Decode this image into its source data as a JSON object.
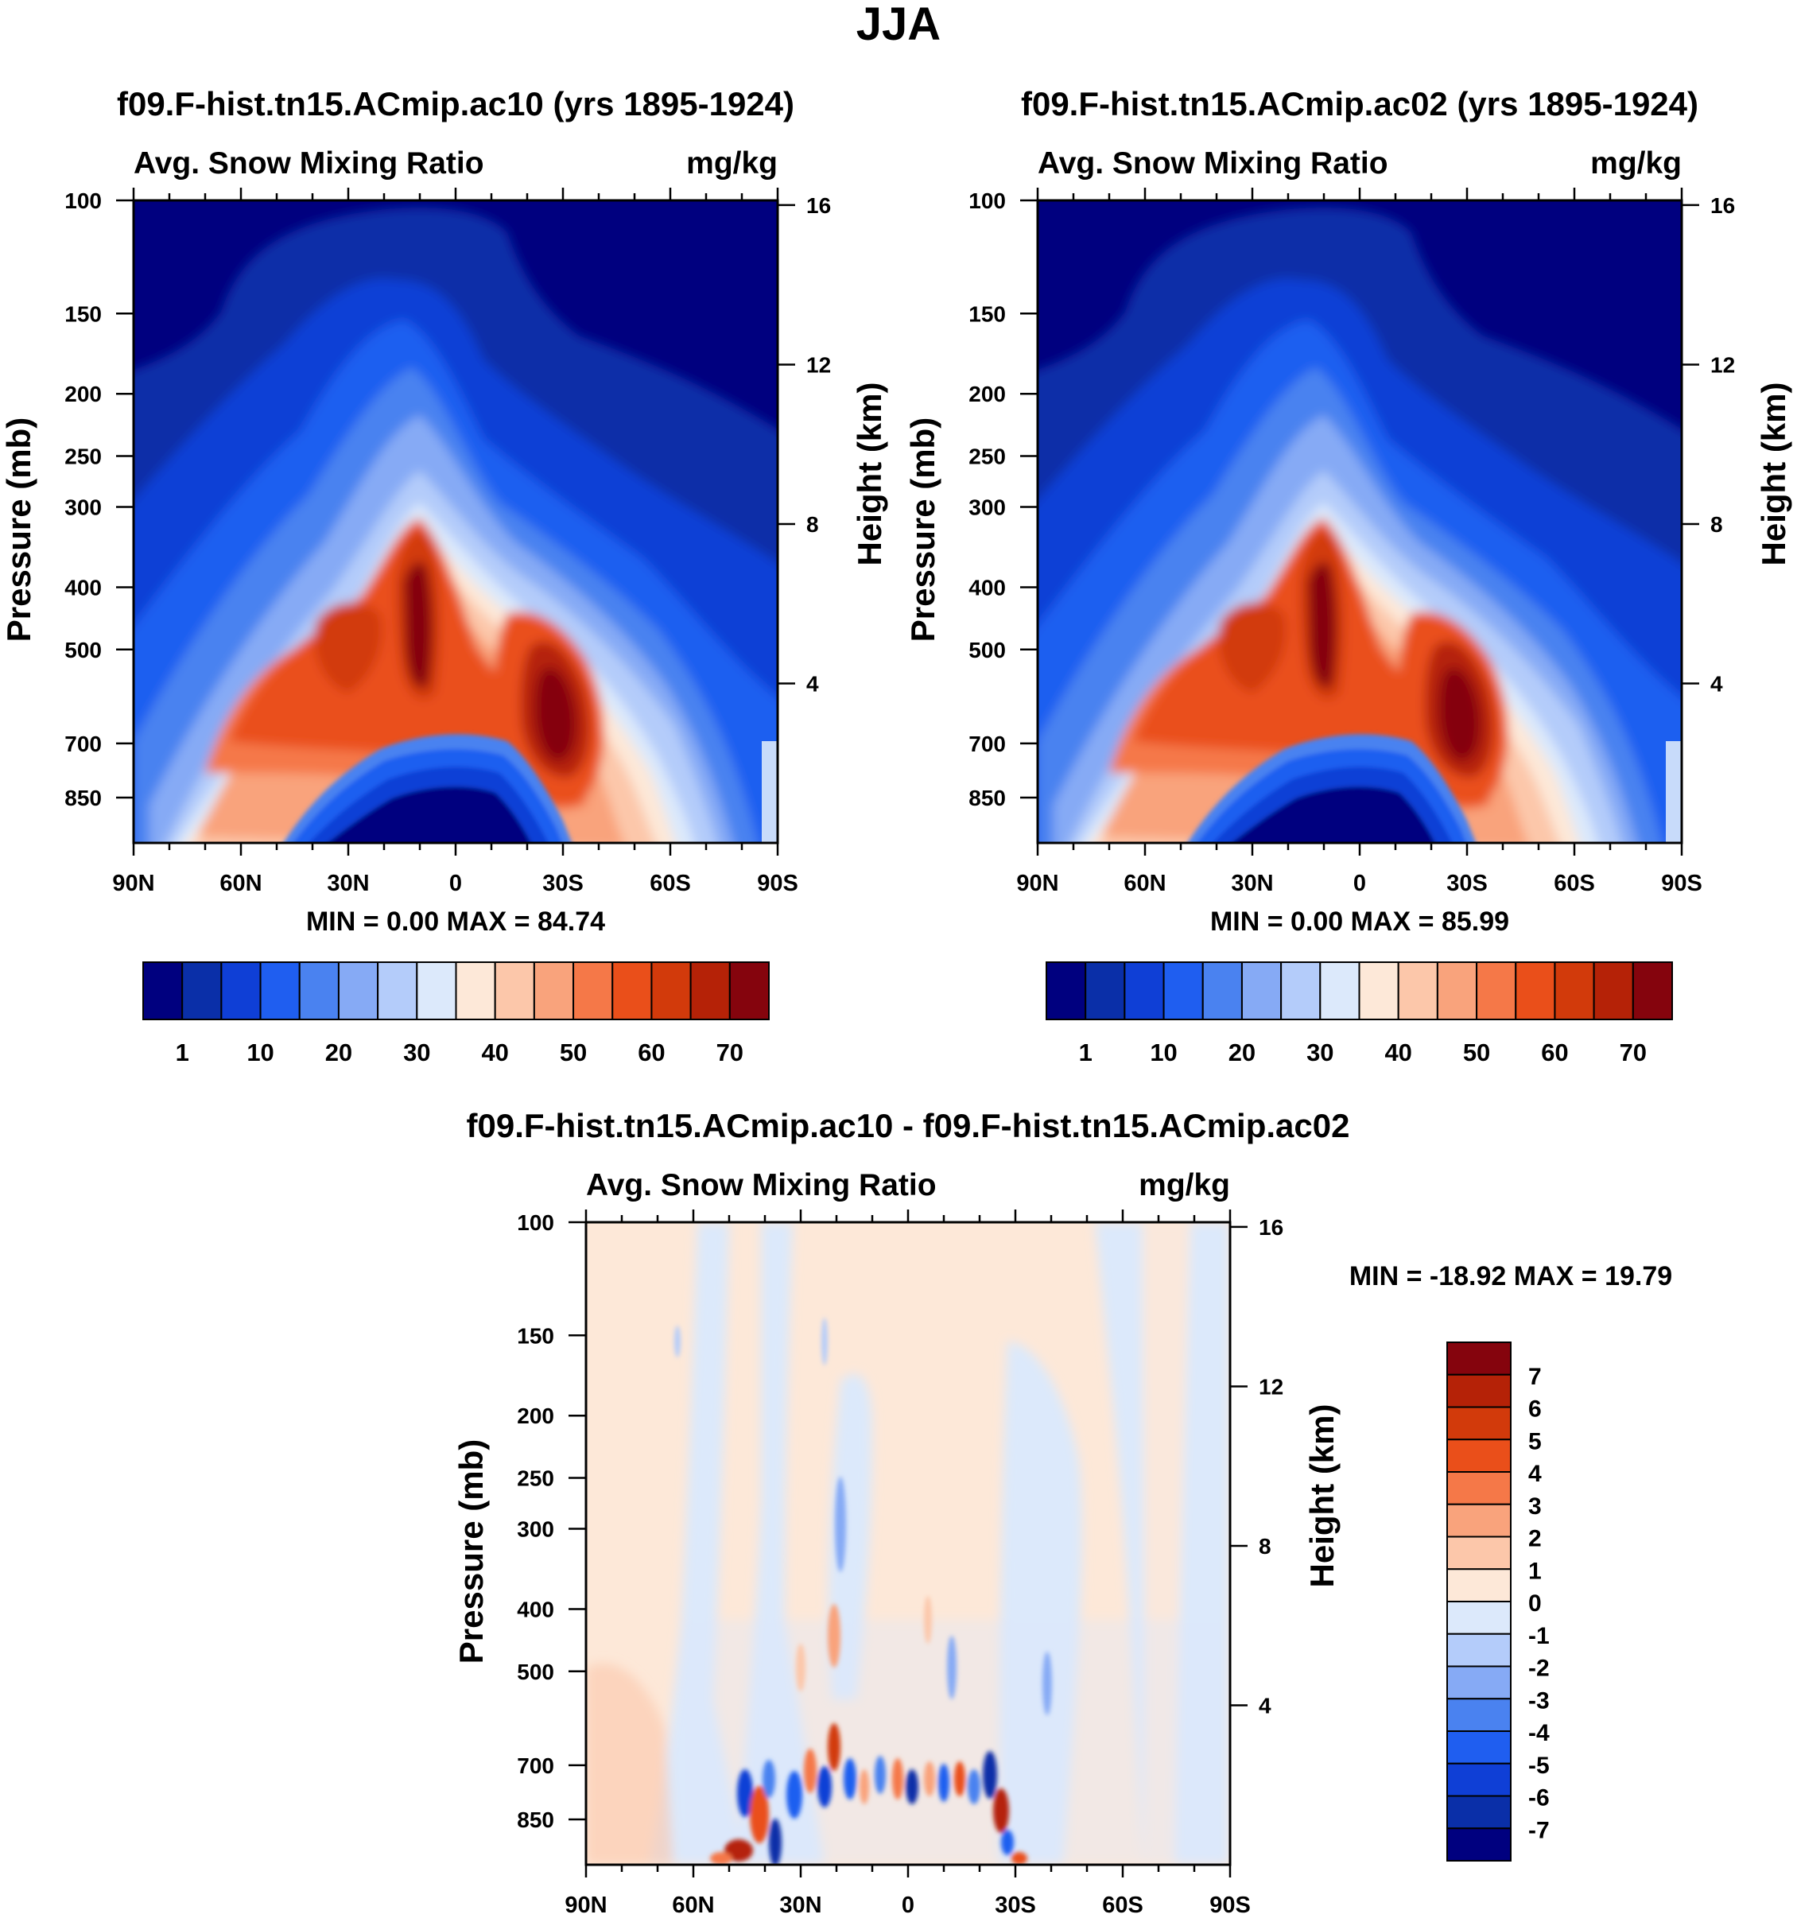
{
  "figure_title": "JJA",
  "chart_data": [
    {
      "type": "heatmap",
      "panel": "top-left",
      "title": "f09.F-hist.tn15.ACmip.ac10 (yrs 1895-1924)",
      "left_label": "Avg. Snow Mixing Ratio",
      "units": "mg/kg",
      "ylabel": "Pressure (mb)",
      "y2label": "Height (km)",
      "xlabel": "",
      "x_ticks": [
        "90N",
        "60N",
        "30N",
        "0",
        "30S",
        "60S",
        "90S"
      ],
      "y_ticks": [
        "100",
        "150",
        "200",
        "250",
        "300",
        "400",
        "500",
        "700",
        "850"
      ],
      "y2_ticks": [
        "16",
        "12",
        "8",
        "4"
      ],
      "ylim": [
        100,
        1000
      ],
      "stats": {
        "min_label": "MIN =",
        "min": "0.00",
        "max_label": "MAX =",
        "max": "84.74"
      },
      "colorbar": {
        "labels": [
          "1",
          "10",
          "20",
          "30",
          "40",
          "50",
          "60",
          "70"
        ],
        "colors": [
          "#00007f",
          "#0a2fa8",
          "#0f3fd6",
          "#1f5ef0",
          "#4a82f0",
          "#86aaf5",
          "#b4ccfa",
          "#dce9fb",
          "#fde8d8",
          "#fcc7aa",
          "#f9a37c",
          "#f57848",
          "#ea4f1a",
          "#d23a0b",
          "#b52207",
          "#85040d"
        ]
      }
    },
    {
      "type": "heatmap",
      "panel": "top-right",
      "title": "f09.F-hist.tn15.ACmip.ac02 (yrs 1895-1924)",
      "left_label": "Avg. Snow Mixing Ratio",
      "units": "mg/kg",
      "ylabel": "Pressure (mb)",
      "y2label": "Height (km)",
      "xlabel": "",
      "x_ticks": [
        "90N",
        "60N",
        "30N",
        "0",
        "30S",
        "60S",
        "90S"
      ],
      "y_ticks": [
        "100",
        "150",
        "200",
        "250",
        "300",
        "400",
        "500",
        "700",
        "850"
      ],
      "y2_ticks": [
        "16",
        "12",
        "8",
        "4"
      ],
      "ylim": [
        100,
        1000
      ],
      "stats": {
        "min_label": "MIN =",
        "min": "0.00",
        "max_label": "MAX =",
        "max": "85.99"
      },
      "colorbar": {
        "labels": [
          "1",
          "10",
          "20",
          "30",
          "40",
          "50",
          "60",
          "70"
        ],
        "colors": [
          "#00007f",
          "#0a2fa8",
          "#0f3fd6",
          "#1f5ef0",
          "#4a82f0",
          "#86aaf5",
          "#b4ccfa",
          "#dce9fb",
          "#fde8d8",
          "#fcc7aa",
          "#f9a37c",
          "#f57848",
          "#ea4f1a",
          "#d23a0b",
          "#b52207",
          "#85040d"
        ]
      }
    },
    {
      "type": "heatmap",
      "panel": "bottom",
      "title": "f09.F-hist.tn15.ACmip.ac10 - f09.F-hist.tn15.ACmip.ac02",
      "left_label": "Avg. Snow Mixing Ratio",
      "units": "mg/kg",
      "ylabel": "Pressure (mb)",
      "y2label": "Height (km)",
      "xlabel": "",
      "x_ticks": [
        "90N",
        "60N",
        "30N",
        "0",
        "30S",
        "60S",
        "90S"
      ],
      "y_ticks": [
        "100",
        "150",
        "200",
        "250",
        "300",
        "400",
        "500",
        "700",
        "850"
      ],
      "y2_ticks": [
        "16",
        "12",
        "8",
        "4"
      ],
      "ylim": [
        100,
        1000
      ],
      "stats": {
        "min_label": "MIN =",
        "min": "-18.92",
        "max_label": "MAX =",
        "max": "19.79"
      },
      "colorbar": {
        "labels": [
          "7",
          "6",
          "5",
          "4",
          "3",
          "2",
          "1",
          "0",
          "-1",
          "-2",
          "-3",
          "-4",
          "-5",
          "-6",
          "-7"
        ],
        "colors": [
          "#85040d",
          "#b52207",
          "#d23a0b",
          "#ea4f1a",
          "#f57848",
          "#f9a37c",
          "#fcc7aa",
          "#fde8d8",
          "#dce9fb",
          "#b4ccfa",
          "#86aaf5",
          "#4a82f0",
          "#1f5ef0",
          "#0f3fd6",
          "#0a2fa8",
          "#00007f"
        ]
      }
    }
  ]
}
